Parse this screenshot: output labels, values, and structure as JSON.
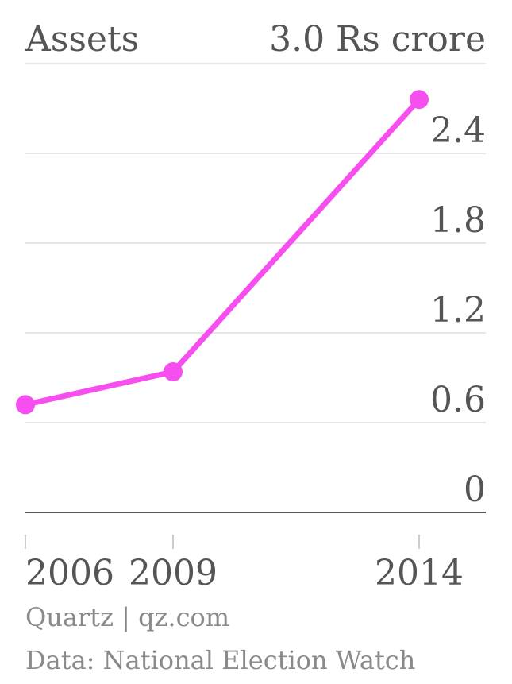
{
  "chart_data": {
    "type": "line",
    "title": "Assets",
    "unit": "Rs crore",
    "top_tick_label": "3.0 Rs crore",
    "categories": [
      "2006",
      "2009",
      "2014"
    ],
    "values": [
      0.72,
      0.94,
      2.76
    ],
    "ylim": [
      0,
      3.0
    ],
    "y_ticks": [
      "0",
      "0.6",
      "1.2",
      "1.8",
      "2.4"
    ],
    "y_tick_values": [
      0,
      0.6,
      1.2,
      1.8,
      2.4,
      3.0
    ],
    "x_positions": [
      2006,
      2009,
      2014
    ],
    "xlim": [
      2006,
      2014
    ],
    "grid": true,
    "color": "#f74ef0"
  },
  "footer": {
    "source": "Quartz | qz.com",
    "data": "Data: National Election Watch"
  }
}
